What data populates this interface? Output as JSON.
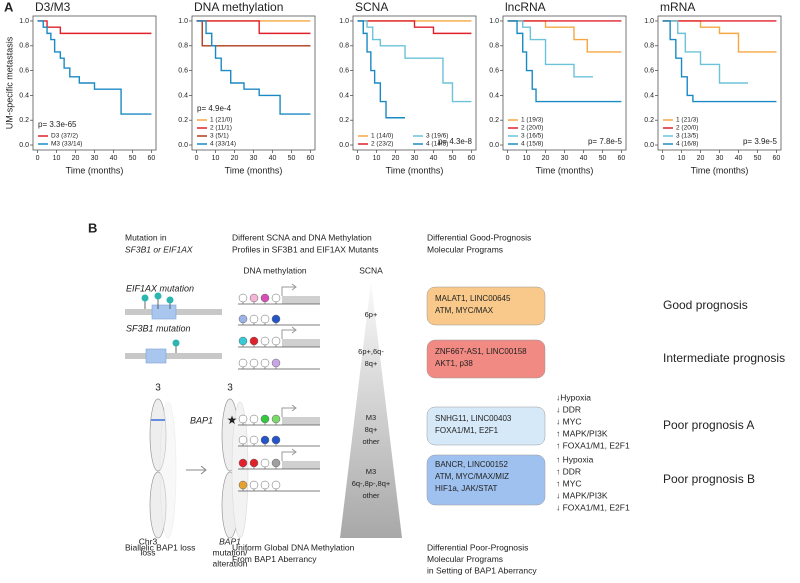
{
  "chart_data": [
    {
      "type": "step",
      "title": "D3/M3",
      "y_label": "UM-specific metastasis",
      "x_label": "Time (months)",
      "xlim": [
        -2.4,
        62.4
      ],
      "xticks": [
        0,
        10,
        20,
        30,
        40,
        50,
        60
      ],
      "ylim": [
        -0.04,
        1.04
      ],
      "yticks": [
        {
          "value": 0,
          "label": "0.0"
        },
        {
          "value": 0.2,
          "label": "0.2"
        },
        {
          "value": 0.4,
          "label": "0.4"
        },
        {
          "value": 0.6,
          "label": "0.6"
        },
        {
          "value": 0.8,
          "label": "0.8"
        },
        {
          "value": 1,
          "label": "1.0"
        }
      ],
      "legend": "lower left",
      "p_text": "p= 3.3e-65",
      "p_corner": "lower left",
      "series": [
        {
          "name": "D3 (37/2)",
          "color": "#e0202a",
          "x": [
            0,
            5,
            12,
            60
          ],
          "values": [
            1.0,
            0.95,
            0.9,
            0.9
          ]
        },
        {
          "name": "M3 (33/14)",
          "color": "#1a8ac4",
          "x": [
            0,
            3,
            5,
            7,
            9,
            12,
            14,
            17,
            22,
            30,
            44,
            60
          ],
          "values": [
            1.0,
            0.95,
            0.9,
            0.85,
            0.75,
            0.7,
            0.62,
            0.55,
            0.5,
            0.45,
            0.25,
            0.25
          ]
        }
      ]
    },
    {
      "type": "step",
      "title": "DNA methylation",
      "x_label": "Time (months)",
      "xlim": [
        -2.4,
        62.4
      ],
      "xticks": [
        0,
        10,
        20,
        30,
        40,
        50,
        60
      ],
      "ylim": [
        -0.04,
        1.04
      ],
      "yticks": [
        {
          "value": 0,
          "label": "0.0"
        },
        {
          "value": 0.2,
          "label": "0.2"
        },
        {
          "value": 0.4,
          "label": "0.4"
        },
        {
          "value": 0.6,
          "label": "0.6"
        },
        {
          "value": 0.8,
          "label": "0.8"
        },
        {
          "value": 1,
          "label": "1.0"
        }
      ],
      "legend": "lower left",
      "p_text": "p= 4.9e-4",
      "p_corner": "lower left",
      "series": [
        {
          "name": "1 (21/0)",
          "color": "#f5a742",
          "x": [
            0,
            60
          ],
          "values": [
            1.0,
            1.0
          ]
        },
        {
          "name": "2 (11/1)",
          "color": "#e0202a",
          "x": [
            0,
            33,
            60
          ],
          "values": [
            1.0,
            0.9,
            0.9
          ]
        },
        {
          "name": "3 (5/1)",
          "color": "#b03a1a",
          "x": [
            0,
            3,
            60
          ],
          "values": [
            1.0,
            0.8,
            0.8
          ]
        },
        {
          "name": "4 (33/14)",
          "color": "#1a8ac4",
          "x": [
            0,
            5,
            8,
            10,
            13,
            18,
            25,
            33,
            44,
            60
          ],
          "values": [
            1.0,
            0.9,
            0.8,
            0.7,
            0.6,
            0.5,
            0.45,
            0.4,
            0.25,
            0.25
          ]
        }
      ]
    },
    {
      "type": "step",
      "title": "SCNA",
      "x_label": "Time (months)",
      "xlim": [
        -2.4,
        62.4
      ],
      "xticks": [
        0,
        10,
        20,
        30,
        40,
        50,
        60
      ],
      "ylim": [
        -0.04,
        1.04
      ],
      "yticks": [
        {
          "value": 0,
          "label": "0.0"
        },
        {
          "value": 0.2,
          "label": "0.2"
        },
        {
          "value": 0.4,
          "label": "0.4"
        },
        {
          "value": 0.6,
          "label": "0.6"
        },
        {
          "value": 0.8,
          "label": "0.8"
        },
        {
          "value": 1,
          "label": "1.0"
        }
      ],
      "legend": "lower left",
      "legend_columns": 2,
      "p_text": "p= 4.3e-8",
      "p_corner": "lower right",
      "series": [
        {
          "name": "1 (14/0)",
          "color": "#f5a742",
          "x": [
            0,
            60
          ],
          "values": [
            1.0,
            1.0
          ]
        },
        {
          "name": "2 (23/2)",
          "color": "#e0202a",
          "x": [
            0,
            30,
            40,
            60
          ],
          "values": [
            1.0,
            0.95,
            0.9,
            0.9
          ]
        },
        {
          "name": "3 (19/6)",
          "color": "#6cc3d9",
          "x": [
            0,
            5,
            8,
            12,
            25,
            45,
            50,
            60
          ],
          "values": [
            1.0,
            0.95,
            0.85,
            0.8,
            0.7,
            0.5,
            0.35,
            0.35
          ]
        },
        {
          "name": "4 (14/8)",
          "color": "#1a8ac4",
          "x": [
            0,
            3,
            5,
            7,
            9,
            12,
            15,
            25
          ],
          "values": [
            1.0,
            0.9,
            0.75,
            0.6,
            0.5,
            0.35,
            0.22,
            0.22
          ]
        }
      ]
    },
    {
      "type": "step",
      "title": "lncRNA",
      "x_label": "Time (months)",
      "xlim": [
        -2.4,
        62.4
      ],
      "xticks": [
        0,
        10,
        20,
        30,
        40,
        50,
        60
      ],
      "ylim": [
        -0.04,
        1.04
      ],
      "yticks": [
        {
          "value": 0,
          "label": "0.0"
        },
        {
          "value": 0.2,
          "label": "0.2"
        },
        {
          "value": 0.4,
          "label": "0.4"
        },
        {
          "value": 0.6,
          "label": "0.6"
        },
        {
          "value": 0.8,
          "label": "0.8"
        },
        {
          "value": 1,
          "label": "1.0"
        }
      ],
      "legend": "lower left",
      "p_text": "p= 7.8e-5",
      "p_corner": "lower right",
      "series": [
        {
          "name": "1 (19/3)",
          "color": "#f5a742",
          "x": [
            0,
            20,
            35,
            42,
            60
          ],
          "values": [
            1.0,
            0.95,
            0.85,
            0.75,
            0.75
          ]
        },
        {
          "name": "2 (20/0)",
          "color": "#e0202a",
          "x": [
            0,
            60
          ],
          "values": [
            1.0,
            1.0
          ]
        },
        {
          "name": "3 (16/5)",
          "color": "#6cc3d9",
          "x": [
            0,
            8,
            12,
            20,
            35,
            45
          ],
          "values": [
            1.0,
            0.95,
            0.85,
            0.65,
            0.55,
            0.55
          ]
        },
        {
          "name": "4 (15/8)",
          "color": "#1a8ac4",
          "x": [
            0,
            5,
            8,
            10,
            13,
            15,
            60
          ],
          "values": [
            1.0,
            0.9,
            0.75,
            0.6,
            0.45,
            0.35,
            0.35
          ]
        }
      ]
    },
    {
      "type": "step",
      "title": "mRNA",
      "x_label": "Time (months)",
      "xlim": [
        -2.4,
        62.4
      ],
      "xticks": [
        0,
        10,
        20,
        30,
        40,
        50,
        60
      ],
      "ylim": [
        -0.04,
        1.04
      ],
      "yticks": [
        {
          "value": 0,
          "label": "0.0"
        },
        {
          "value": 0.2,
          "label": "0.2"
        },
        {
          "value": 0.4,
          "label": "0.4"
        },
        {
          "value": 0.6,
          "label": "0.6"
        },
        {
          "value": 0.8,
          "label": "0.8"
        },
        {
          "value": 1,
          "label": "1.0"
        }
      ],
      "legend": "lower left",
      "p_text": "p= 3.9e-5",
      "p_corner": "lower right",
      "series": [
        {
          "name": "1 (21/3)",
          "color": "#f5a742",
          "x": [
            0,
            20,
            30,
            40,
            60
          ],
          "values": [
            1.0,
            0.95,
            0.9,
            0.75,
            0.75
          ]
        },
        {
          "name": "2 (20/0)",
          "color": "#e0202a",
          "x": [
            0,
            60
          ],
          "values": [
            1.0,
            1.0
          ]
        },
        {
          "name": "3 (13/5)",
          "color": "#6cc3d9",
          "x": [
            0,
            8,
            12,
            20,
            30,
            45
          ],
          "values": [
            1.0,
            0.9,
            0.75,
            0.65,
            0.5,
            0.5
          ]
        },
        {
          "name": "4 (16/8)",
          "color": "#1a8ac4",
          "x": [
            0,
            4,
            7,
            10,
            13,
            16,
            60
          ],
          "values": [
            1.0,
            0.85,
            0.7,
            0.55,
            0.4,
            0.35,
            0.35
          ]
        }
      ]
    }
  ],
  "panel_a": {
    "label": "A"
  },
  "panel_b": {
    "label": "B",
    "headers": [
      [
        "Mutation in",
        "SF3B1 or EIF1AX"
      ],
      [
        "Different SCNA and DNA Methylation",
        "Profiles in SF3B1 and EIF1AX Mutants"
      ],
      [
        "Differential Good-Prognosis",
        "Molecular Programs"
      ]
    ],
    "mutations": [
      "EIF1AX mutation",
      "SF3B1 mutation"
    ],
    "chromosome_numbers": [
      "3",
      "3"
    ],
    "bap1": "BAP1",
    "chromosome_captions": [
      [
        "Chr3",
        "loss"
      ],
      [
        "BAP1",
        "mutation/",
        "alteration"
      ]
    ],
    "methylation_title": "DNA methylation",
    "scna_title": "SCNA",
    "scna_groups": [
      [
        "6p+"
      ],
      [
        "6p+,6q-",
        "8q+"
      ],
      [
        "M3",
        "8q+",
        "other"
      ],
      [
        "M3",
        "6q-,8p-,8q+",
        "other"
      ]
    ],
    "programs": [
      {
        "lines": [
          "MALAT1, LINC00645",
          "ATM, MYC/MAX"
        ],
        "color": "#f8c98a",
        "prognosis": "Good prognosis"
      },
      {
        "lines": [
          "ZNF667-AS1, LINC00158",
          "AKT1, p38"
        ],
        "color": "#f08a82",
        "prognosis": "Intermediate prognosis"
      },
      {
        "lines": [
          "SNHG11, LINC00403",
          "FOXA1/M1, E2F1"
        ],
        "color": "#d6e9f8",
        "prognosis": "Poor prognosis A"
      },
      {
        "lines": [
          "BANCR, LINC00152",
          "ATM, MYC/MAX/MIZ",
          "HIF1a, JAK/STAT"
        ],
        "color": "#9fc1ef",
        "prognosis": "Poor prognosis B"
      }
    ],
    "changes": [
      [
        {
          "text": "↓Hypoxia",
          "color": "#1f4fd0"
        },
        {
          "text": "↓ DDR",
          "color": "#1f4fd0"
        },
        {
          "text": "↓ MYC",
          "color": "#1f4fd0"
        },
        {
          "text": "↑ MAPK/PI3K",
          "color": "#e0202a"
        },
        {
          "text": "↑ FOXA1/M1, E2F1",
          "color": "#e0202a"
        }
      ],
      [
        {
          "text": "↑ Hypoxia",
          "color": "#e0202a"
        },
        {
          "text": "↑ DDR",
          "color": "#e0202a"
        },
        {
          "text": "↑ MYC",
          "color": "#e0202a"
        },
        {
          "text": "↓ MAPK/PI3K",
          "color": "#1f4fd0"
        },
        {
          "text": "↓ FOXA1/M1, E2F1",
          "color": "#1f4fd0"
        }
      ]
    ],
    "footers": [
      [
        "Biallelic BAP1 loss"
      ],
      [
        "Uniform Global DNA Methylation",
        "From BAP1 Aberrancy"
      ],
      [
        "Differential Poor-Prognosis",
        "Molecular Programs",
        "in Setting of BAP1 Aberrancy"
      ]
    ]
  }
}
